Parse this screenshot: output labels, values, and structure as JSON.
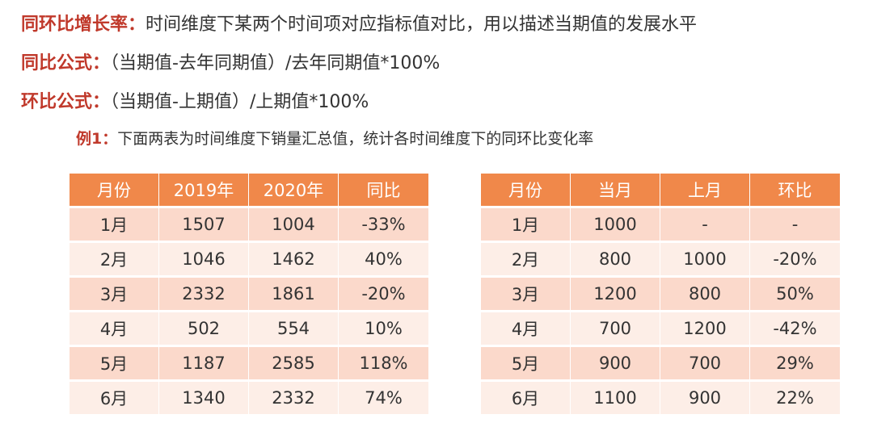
{
  "definition": {
    "key": "同环比增长率：",
    "text": "时间维度下某两个时间项对应指标值对比，用以描述当期值的发展水平"
  },
  "yoy_formula": {
    "key": "同比公式：",
    "text": "（当期值-去年同期值）/去年同期值*100%"
  },
  "mom_formula": {
    "key": "环比公式：",
    "text": "（当期值-上期值）/上期值*100%"
  },
  "example": {
    "key": "例1：",
    "text": "下面两表为时间维度下销量汇总值，统计各时间维度下的同环比变化率"
  },
  "yoy_table": {
    "headers": [
      "月份",
      "2019年",
      "2020年",
      "同比"
    ],
    "rows": [
      [
        "1月",
        "1507",
        "1004",
        "-33%"
      ],
      [
        "2月",
        "1046",
        "1462",
        "40%"
      ],
      [
        "3月",
        "2332",
        "1861",
        "-20%"
      ],
      [
        "4月",
        "502",
        "554",
        "10%"
      ],
      [
        "5月",
        "1187",
        "2585",
        "118%"
      ],
      [
        "6月",
        "1340",
        "2332",
        "74%"
      ]
    ]
  },
  "mom_table": {
    "headers": [
      "月份",
      "当月",
      "上月",
      "环比"
    ],
    "rows": [
      [
        "1月",
        "1000",
        "-",
        "-"
      ],
      [
        "2月",
        "800",
        "1000",
        "-20%"
      ],
      [
        "3月",
        "1200",
        "800",
        "50%"
      ],
      [
        "4月",
        "700",
        "1200",
        "-42%"
      ],
      [
        "5月",
        "900",
        "700",
        "29%"
      ],
      [
        "6月",
        "1100",
        "900",
        "22%"
      ]
    ]
  },
  "colors": {
    "accent_text": "#c0392b",
    "header_bg": "#f0884a",
    "row_odd": "#fbd9cb",
    "row_even": "#fdeee7"
  }
}
